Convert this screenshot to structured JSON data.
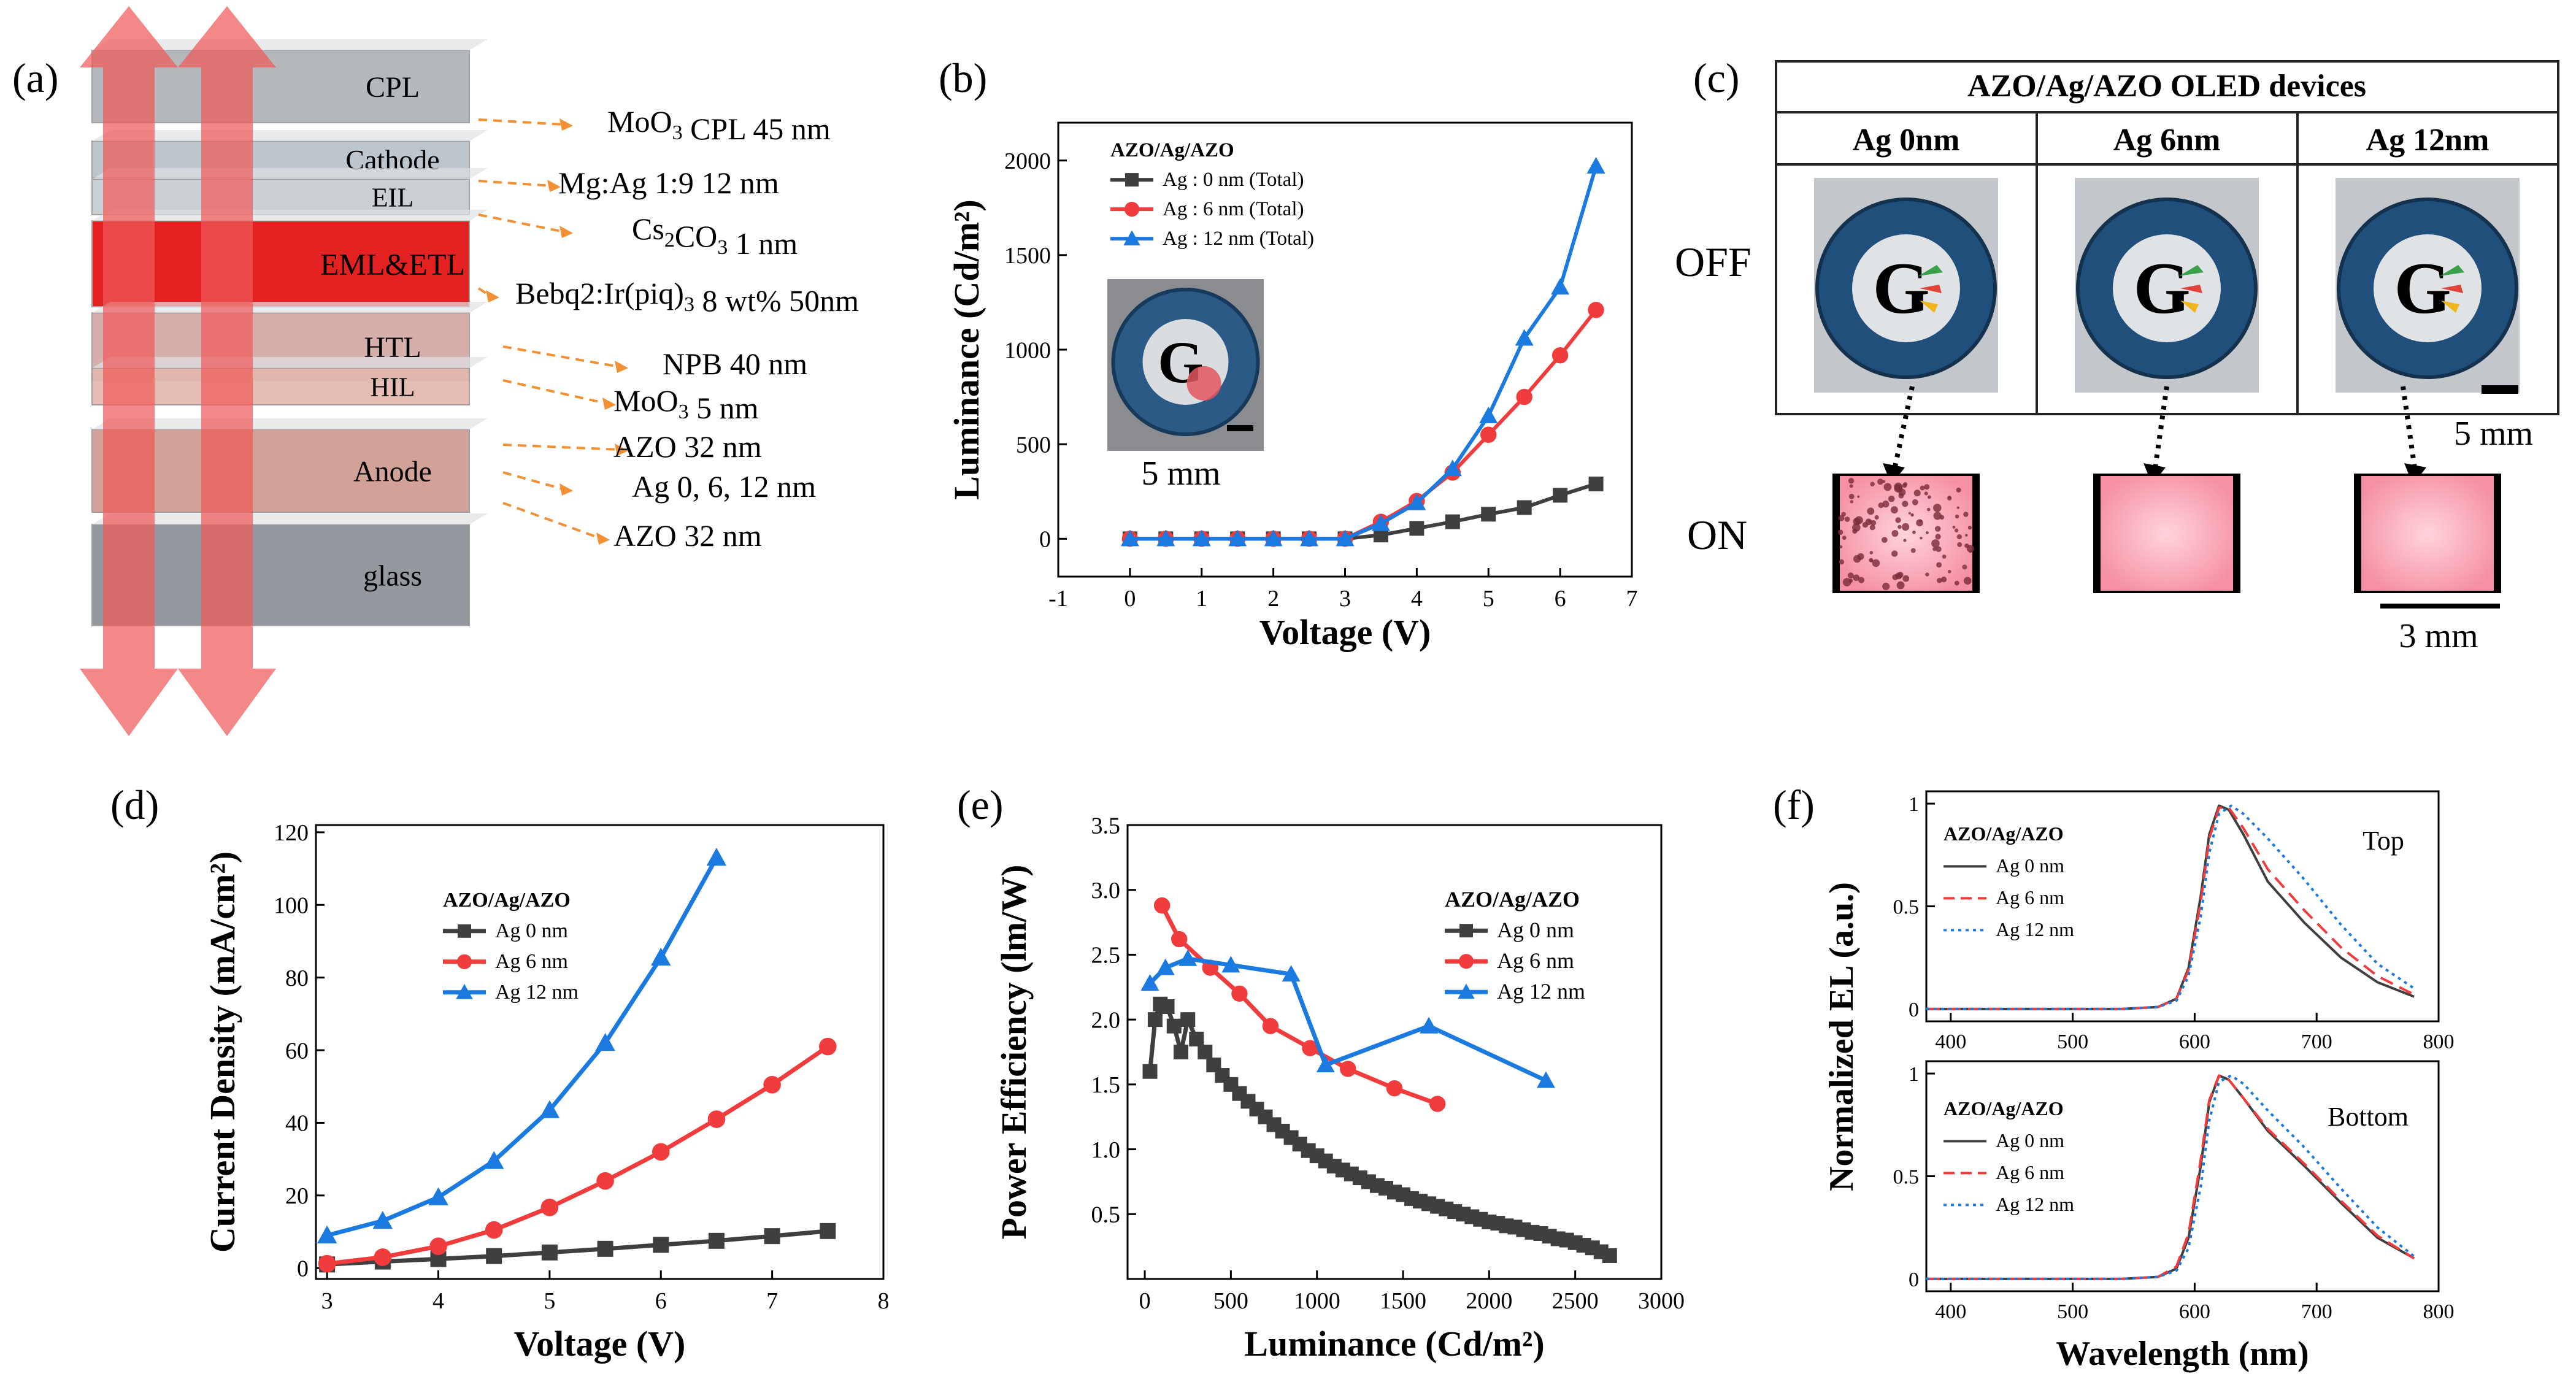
{
  "panel_letters": {
    "a": "(a)",
    "b": "(b)",
    "c": "(c)",
    "d": "(d)",
    "e": "(e)",
    "f": "(f)"
  },
  "colors": {
    "ag0": "#3f3f3f",
    "ag6": "#f03c3c",
    "ag12": "#1a7ae0",
    "arrow": "#f05a5a",
    "dash": "#f39033",
    "eml": "#e10f0f"
  },
  "stack": {
    "layers": [
      "CPL",
      "Cathode",
      "EIL",
      "EML&ETL",
      "HTL",
      "HIL",
      "Anode",
      "glass"
    ],
    "annotations": [
      {
        "text": "MoO",
        "sub": "3",
        "rest": " CPL 45 nm"
      },
      {
        "text": "Mg:Ag  1:9 12 nm",
        "sub": "",
        "rest": ""
      },
      {
        "text": "Cs",
        "sub": "2",
        "rest": "CO",
        "sub2": "3",
        "rest2": " 1 nm"
      },
      {
        "text": "Bebq2:Ir(piq)",
        "sub": "3",
        "rest": " 8 wt% 50nm"
      },
      {
        "text": "NPB 40 nm",
        "sub": "",
        "rest": ""
      },
      {
        "text": "MoO",
        "sub": "3",
        "rest": " 5 nm"
      },
      {
        "text": "AZO 32 nm",
        "sub": "",
        "rest": ""
      },
      {
        "text": "Ag 0, 6, 12 nm",
        "sub": "",
        "rest": ""
      },
      {
        "text": "AZO 32 nm",
        "sub": "",
        "rest": ""
      }
    ]
  },
  "panel_c": {
    "header": "AZO/Ag/AZO  OLED devices",
    "columns": [
      "Ag 0nm",
      "Ag 6nm",
      "Ag 12nm"
    ],
    "row_off": "OFF",
    "row_on": "ON",
    "scale_5mm": "5 mm",
    "scale_3mm": "3 mm"
  },
  "chart_data": [
    {
      "panel": "b",
      "type": "line",
      "xlabel": "Voltage (V)",
      "ylabel": "Luminance (Cd/m²)",
      "xlim": [
        -1,
        7
      ],
      "ylim": [
        -200,
        2200
      ],
      "xticks": [
        -1,
        0,
        1,
        2,
        3,
        4,
        5,
        6,
        7
      ],
      "yticks": [
        0,
        500,
        1000,
        1500,
        2000
      ],
      "legend_title": "AZO/Ag/AZO",
      "inset_label": "5 mm",
      "series": [
        {
          "name": "Ag : 0 nm (Total)",
          "marker": "square",
          "x": [
            0,
            0.5,
            1,
            1.5,
            2,
            2.5,
            3,
            3.5,
            4,
            4.5,
            5,
            5.5,
            6,
            6.5
          ],
          "y": [
            0,
            0,
            0,
            0,
            0,
            0,
            0,
            20,
            55,
            90,
            130,
            165,
            230,
            290
          ]
        },
        {
          "name": "Ag : 6 nm (Total)",
          "marker": "circle",
          "x": [
            0,
            0.5,
            1,
            1.5,
            2,
            2.5,
            3,
            3.5,
            4,
            4.5,
            5,
            5.5,
            6,
            6.5
          ],
          "y": [
            0,
            0,
            0,
            0,
            0,
            0,
            0,
            90,
            200,
            350,
            550,
            750,
            970,
            1210
          ]
        },
        {
          "name": "Ag : 12 nm (Total)",
          "marker": "triangle",
          "x": [
            0,
            0.5,
            1,
            1.5,
            2,
            2.5,
            3,
            3.5,
            4,
            4.5,
            5,
            5.5,
            6,
            6.5
          ],
          "y": [
            0,
            0,
            0,
            0,
            0,
            0,
            0,
            80,
            190,
            370,
            650,
            1060,
            1330,
            1970
          ]
        }
      ]
    },
    {
      "panel": "d",
      "type": "line",
      "xlabel": "Voltage (V)",
      "ylabel": "Current Density (mA/cm²)",
      "xlim": [
        2.9,
        8
      ],
      "ylim": [
        -3,
        122
      ],
      "xticks": [
        3,
        4,
        5,
        6,
        7,
        8
      ],
      "yticks": [
        0,
        20,
        40,
        60,
        80,
        100,
        120
      ],
      "legend_title": "AZO/Ag/AZO",
      "series": [
        {
          "name": "Ag 0 nm",
          "marker": "square",
          "x": [
            3,
            3.5,
            4,
            4.5,
            5,
            5.5,
            6,
            6.5,
            7,
            7.5
          ],
          "y": [
            1,
            1.8,
            2.5,
            3.3,
            4.3,
            5.3,
            6.4,
            7.5,
            8.8,
            10.2
          ]
        },
        {
          "name": "Ag 6 nm",
          "marker": "circle",
          "x": [
            3,
            3.5,
            4,
            4.5,
            5,
            5.5,
            6,
            6.5,
            7,
            7.5
          ],
          "y": [
            1.2,
            3,
            6,
            10.5,
            16.7,
            24,
            32,
            41,
            50.5,
            61
          ]
        },
        {
          "name": "Ag 12 nm",
          "marker": "triangle",
          "x": [
            3,
            3.5,
            4,
            4.5,
            5,
            5.5,
            6,
            6.5
          ],
          "y": [
            9,
            13,
            19.5,
            29.5,
            43.5,
            62,
            85.5,
            113
          ]
        }
      ]
    },
    {
      "panel": "e",
      "type": "line",
      "xlabel": "Luminance (Cd/m²)",
      "ylabel": "Power Efficiency (lm/W)",
      "xlim": [
        -100,
        3000
      ],
      "ylim": [
        0,
        3.5
      ],
      "xticks": [
        0,
        500,
        1000,
        1500,
        2000,
        2500,
        3000
      ],
      "yticks": [
        0.5,
        1.0,
        1.5,
        2.0,
        2.5,
        3.0,
        3.5
      ],
      "legend_title": "AZO/Ag/AZO",
      "series": [
        {
          "name": "Ag 0 nm",
          "marker": "square",
          "x": [
            30,
            60,
            90,
            130,
            170,
            210,
            250,
            300,
            350,
            400,
            450,
            500,
            550,
            600,
            650,
            700,
            750,
            800,
            850,
            900,
            950,
            1000,
            1050,
            1100,
            1150,
            1200,
            1250,
            1300,
            1350,
            1400,
            1450,
            1500,
            1550,
            1600,
            1650,
            1700,
            1750,
            1800,
            1850,
            1900,
            1950,
            2000,
            2050,
            2100,
            2150,
            2200,
            2250,
            2300,
            2350,
            2400,
            2450,
            2500,
            2550,
            2600,
            2650,
            2700
          ],
          "y": [
            1.6,
            2.0,
            2.12,
            2.1,
            1.95,
            1.75,
            2.0,
            1.85,
            1.75,
            1.65,
            1.57,
            1.5,
            1.43,
            1.37,
            1.31,
            1.25,
            1.19,
            1.14,
            1.09,
            1.04,
            0.99,
            0.95,
            0.91,
            0.87,
            0.84,
            0.81,
            0.78,
            0.75,
            0.72,
            0.7,
            0.67,
            0.65,
            0.62,
            0.6,
            0.58,
            0.56,
            0.54,
            0.52,
            0.5,
            0.48,
            0.46,
            0.44,
            0.43,
            0.41,
            0.4,
            0.38,
            0.36,
            0.35,
            0.33,
            0.31,
            0.3,
            0.28,
            0.26,
            0.24,
            0.21,
            0.18
          ]
        },
        {
          "name": "Ag 6 nm",
          "marker": "circle",
          "x": [
            100,
            200,
            380,
            550,
            730,
            960,
            1180,
            1450,
            1700
          ],
          "y": [
            2.88,
            2.62,
            2.4,
            2.2,
            1.95,
            1.78,
            1.62,
            1.47,
            1.35
          ]
        },
        {
          "name": "Ag 12 nm",
          "marker": "triangle",
          "x": [
            30,
            120,
            250,
            500,
            850,
            1050,
            1650,
            2330
          ],
          "y": [
            2.28,
            2.4,
            2.47,
            2.42,
            2.35,
            1.65,
            1.95,
            1.53
          ]
        }
      ]
    },
    {
      "panel": "f-top",
      "type": "line",
      "xlabel": "",
      "ylabel": "Normalized EL (a.u.)",
      "annotation": "Top",
      "xlim": [
        380,
        800
      ],
      "ylim": [
        -0.06,
        1.06
      ],
      "xticks": [
        400,
        500,
        600,
        700,
        800
      ],
      "yticks": [
        0.0,
        0.5,
        1.0
      ],
      "legend_title": "AZO/Ag/AZO",
      "series": [
        {
          "name": "Ag 0 nm",
          "style": "solid",
          "x": [
            380,
            540,
            570,
            585,
            595,
            605,
            612,
            620,
            628,
            640,
            660,
            690,
            720,
            750,
            780
          ],
          "y": [
            0,
            0,
            0.01,
            0.05,
            0.2,
            0.55,
            0.85,
            0.99,
            0.97,
            0.85,
            0.62,
            0.42,
            0.25,
            0.13,
            0.06
          ]
        },
        {
          "name": "Ag 6 nm",
          "style": "dashed",
          "x": [
            380,
            540,
            570,
            585,
            595,
            605,
            612,
            620,
            628,
            640,
            660,
            690,
            720,
            750,
            780
          ],
          "y": [
            0,
            0,
            0.01,
            0.05,
            0.19,
            0.52,
            0.83,
            0.98,
            0.98,
            0.88,
            0.68,
            0.48,
            0.3,
            0.16,
            0.07
          ]
        },
        {
          "name": "Ag 12 nm",
          "style": "dotted",
          "x": [
            380,
            540,
            570,
            585,
            595,
            605,
            612,
            620,
            630,
            640,
            660,
            690,
            720,
            750,
            780
          ],
          "y": [
            0,
            0,
            0.01,
            0.04,
            0.16,
            0.45,
            0.76,
            0.95,
            0.99,
            0.95,
            0.83,
            0.63,
            0.41,
            0.22,
            0.1
          ]
        }
      ]
    },
    {
      "panel": "f-bottom",
      "type": "line",
      "xlabel": "Wavelength (nm)",
      "ylabel": "",
      "annotation": "Bottom",
      "xlim": [
        380,
        800
      ],
      "ylim": [
        -0.06,
        1.06
      ],
      "xticks": [
        400,
        500,
        600,
        700,
        800
      ],
      "yticks": [
        0.0,
        0.5,
        1.0
      ],
      "legend_title": "AZO/Ag/AZO",
      "series": [
        {
          "name": "Ag 0 nm",
          "style": "solid",
          "x": [
            380,
            540,
            570,
            585,
            595,
            605,
            612,
            620,
            628,
            640,
            660,
            690,
            720,
            750,
            780
          ],
          "y": [
            0,
            0,
            0.01,
            0.05,
            0.2,
            0.55,
            0.86,
            0.99,
            0.97,
            0.88,
            0.72,
            0.55,
            0.37,
            0.2,
            0.1
          ]
        },
        {
          "name": "Ag 6 nm",
          "style": "dashed",
          "x": [
            380,
            540,
            570,
            585,
            595,
            605,
            612,
            620,
            628,
            640,
            660,
            690,
            720,
            750,
            780
          ],
          "y": [
            0,
            0,
            0.01,
            0.06,
            0.22,
            0.58,
            0.87,
            0.99,
            0.97,
            0.88,
            0.73,
            0.56,
            0.38,
            0.21,
            0.1
          ]
        },
        {
          "name": "Ag 12 nm",
          "style": "dotted",
          "x": [
            380,
            540,
            570,
            585,
            595,
            605,
            612,
            620,
            630,
            640,
            660,
            690,
            720,
            750,
            780
          ],
          "y": [
            0,
            0,
            0.01,
            0.04,
            0.15,
            0.45,
            0.77,
            0.96,
            0.99,
            0.95,
            0.82,
            0.64,
            0.44,
            0.25,
            0.11
          ]
        }
      ]
    }
  ]
}
